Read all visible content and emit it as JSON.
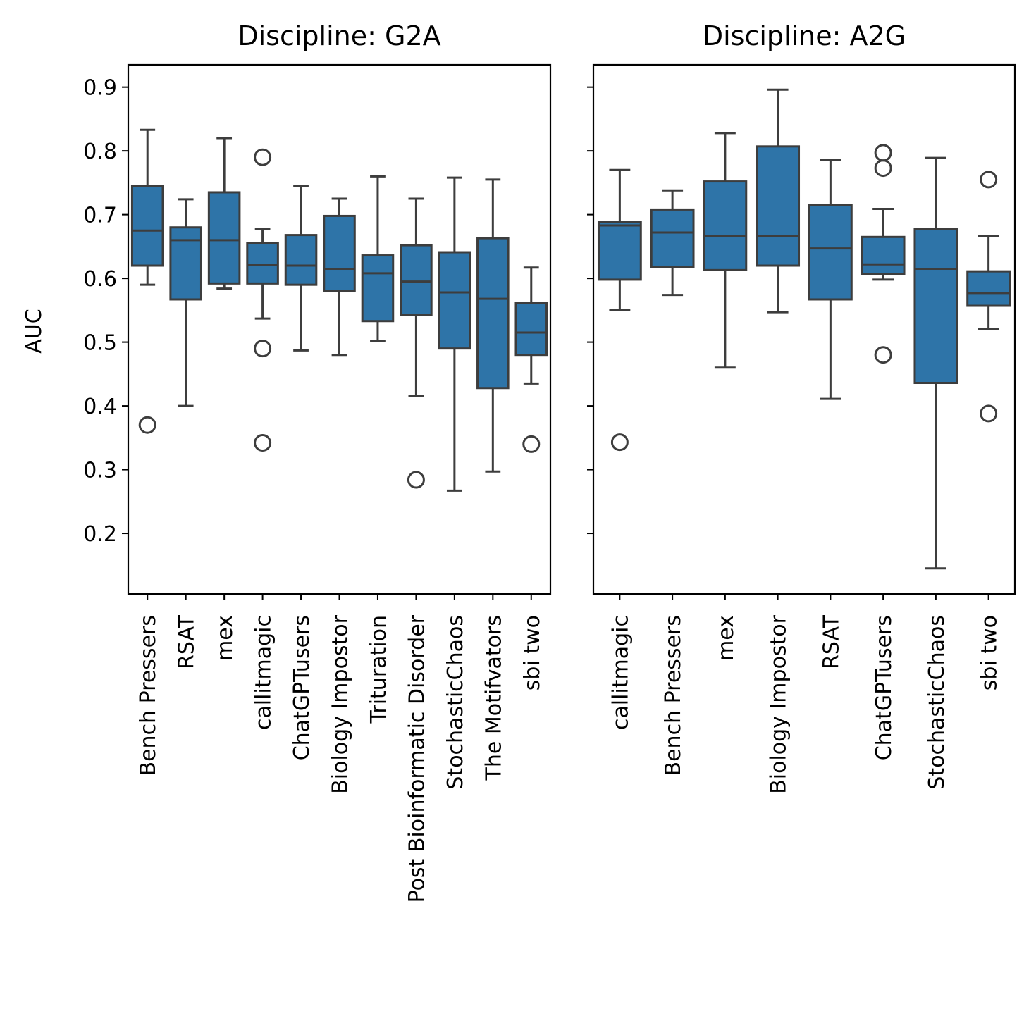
{
  "chart_data": [
    {
      "type": "box",
      "title": "Discipline: G2A",
      "ylabel": "AUC",
      "ylim": [
        0.105,
        0.935
      ],
      "yticks": [
        "0.2",
        "0.3",
        "0.4",
        "0.5",
        "0.6",
        "0.7",
        "0.8",
        "0.9"
      ],
      "color": "#2e74a8",
      "categories": [
        {
          "label": "Bench Pressers",
          "whislo": 0.59,
          "q1": 0.62,
          "med": 0.675,
          "q3": 0.745,
          "whishi": 0.833,
          "fliers": [
            0.37
          ]
        },
        {
          "label": "RSAT",
          "whislo": 0.4,
          "q1": 0.567,
          "med": 0.66,
          "q3": 0.68,
          "whishi": 0.724,
          "fliers": []
        },
        {
          "label": "mex",
          "whislo": 0.584,
          "q1": 0.592,
          "med": 0.66,
          "q3": 0.735,
          "whishi": 0.82,
          "fliers": []
        },
        {
          "label": "callitmagic",
          "whislo": 0.537,
          "q1": 0.592,
          "med": 0.621,
          "q3": 0.655,
          "whishi": 0.678,
          "fliers": [
            0.79,
            0.49,
            0.342
          ]
        },
        {
          "label": "ChatGPTusers",
          "whislo": 0.487,
          "q1": 0.59,
          "med": 0.62,
          "q3": 0.668,
          "whishi": 0.745,
          "fliers": []
        },
        {
          "label": "Biology Impostor",
          "whislo": 0.48,
          "q1": 0.58,
          "med": 0.615,
          "q3": 0.698,
          "whishi": 0.725,
          "fliers": []
        },
        {
          "label": "Trituration",
          "whislo": 0.502,
          "q1": 0.533,
          "med": 0.608,
          "q3": 0.636,
          "whishi": 0.76,
          "fliers": []
        },
        {
          "label": "Post Bioinformatic Disorder",
          "whislo": 0.415,
          "q1": 0.543,
          "med": 0.595,
          "q3": 0.652,
          "whishi": 0.725,
          "fliers": [
            0.284
          ]
        },
        {
          "label": "StochasticChaos",
          "whislo": 0.267,
          "q1": 0.49,
          "med": 0.578,
          "q3": 0.641,
          "whishi": 0.758,
          "fliers": []
        },
        {
          "label": "The Motifvators",
          "whislo": 0.297,
          "q1": 0.428,
          "med": 0.568,
          "q3": 0.663,
          "whishi": 0.755,
          "fliers": []
        },
        {
          "label": "sbi two",
          "whislo": 0.435,
          "q1": 0.48,
          "med": 0.515,
          "q3": 0.562,
          "whishi": 0.617,
          "fliers": [
            0.34
          ]
        }
      ]
    },
    {
      "type": "box",
      "title": "Discipline: A2G",
      "ylabel": "",
      "ylim": [
        0.105,
        0.935
      ],
      "color": "#2e74a8",
      "categories": [
        {
          "label": "callitmagic",
          "whislo": 0.551,
          "q1": 0.598,
          "med": 0.683,
          "q3": 0.689,
          "whishi": 0.77,
          "fliers": [
            0.343
          ]
        },
        {
          "label": "Bench Pressers",
          "whislo": 0.574,
          "q1": 0.618,
          "med": 0.672,
          "q3": 0.708,
          "whishi": 0.738,
          "fliers": []
        },
        {
          "label": "mex",
          "whislo": 0.46,
          "q1": 0.613,
          "med": 0.667,
          "q3": 0.752,
          "whishi": 0.828,
          "fliers": []
        },
        {
          "label": "Biology Impostor",
          "whislo": 0.547,
          "q1": 0.62,
          "med": 0.667,
          "q3": 0.807,
          "whishi": 0.896,
          "fliers": []
        },
        {
          "label": "RSAT",
          "whislo": 0.411,
          "q1": 0.567,
          "med": 0.647,
          "q3": 0.715,
          "whishi": 0.786,
          "fliers": []
        },
        {
          "label": "ChatGPTusers",
          "whislo": 0.598,
          "q1": 0.607,
          "med": 0.622,
          "q3": 0.665,
          "whishi": 0.709,
          "fliers": [
            0.797,
            0.773,
            0.48
          ]
        },
        {
          "label": "StochasticChaos",
          "whislo": 0.145,
          "q1": 0.436,
          "med": 0.615,
          "q3": 0.677,
          "whishi": 0.789,
          "fliers": []
        },
        {
          "label": "sbi two",
          "whislo": 0.52,
          "q1": 0.557,
          "med": 0.577,
          "q3": 0.611,
          "whishi": 0.667,
          "fliers": [
            0.755,
            0.388
          ]
        }
      ]
    }
  ]
}
